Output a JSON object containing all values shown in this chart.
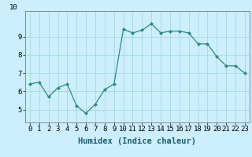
{
  "x": [
    0,
    1,
    2,
    3,
    4,
    5,
    6,
    7,
    8,
    9,
    10,
    11,
    12,
    13,
    14,
    15,
    16,
    17,
    18,
    19,
    20,
    21,
    22,
    23
  ],
  "y": [
    6.4,
    6.5,
    5.7,
    6.2,
    6.4,
    5.2,
    4.8,
    5.3,
    6.1,
    6.4,
    9.4,
    9.2,
    9.35,
    9.7,
    9.2,
    9.3,
    9.3,
    9.2,
    8.6,
    8.6,
    7.9,
    7.4,
    7.4,
    7.0
  ],
  "line_color": "#2e8b7a",
  "bg_color": "#cceeff",
  "grid_color": "#aadddd",
  "xlabel": "Humidex (Indice chaleur)",
  "tick_fontsize": 6.5,
  "xlabel_fontsize": 7.5,
  "ylabel_ticks": [
    5,
    6,
    7,
    8,
    9
  ],
  "ylim": [
    4.3,
    10.4
  ],
  "xlim": [
    -0.5,
    23.5
  ],
  "top_label": "10"
}
